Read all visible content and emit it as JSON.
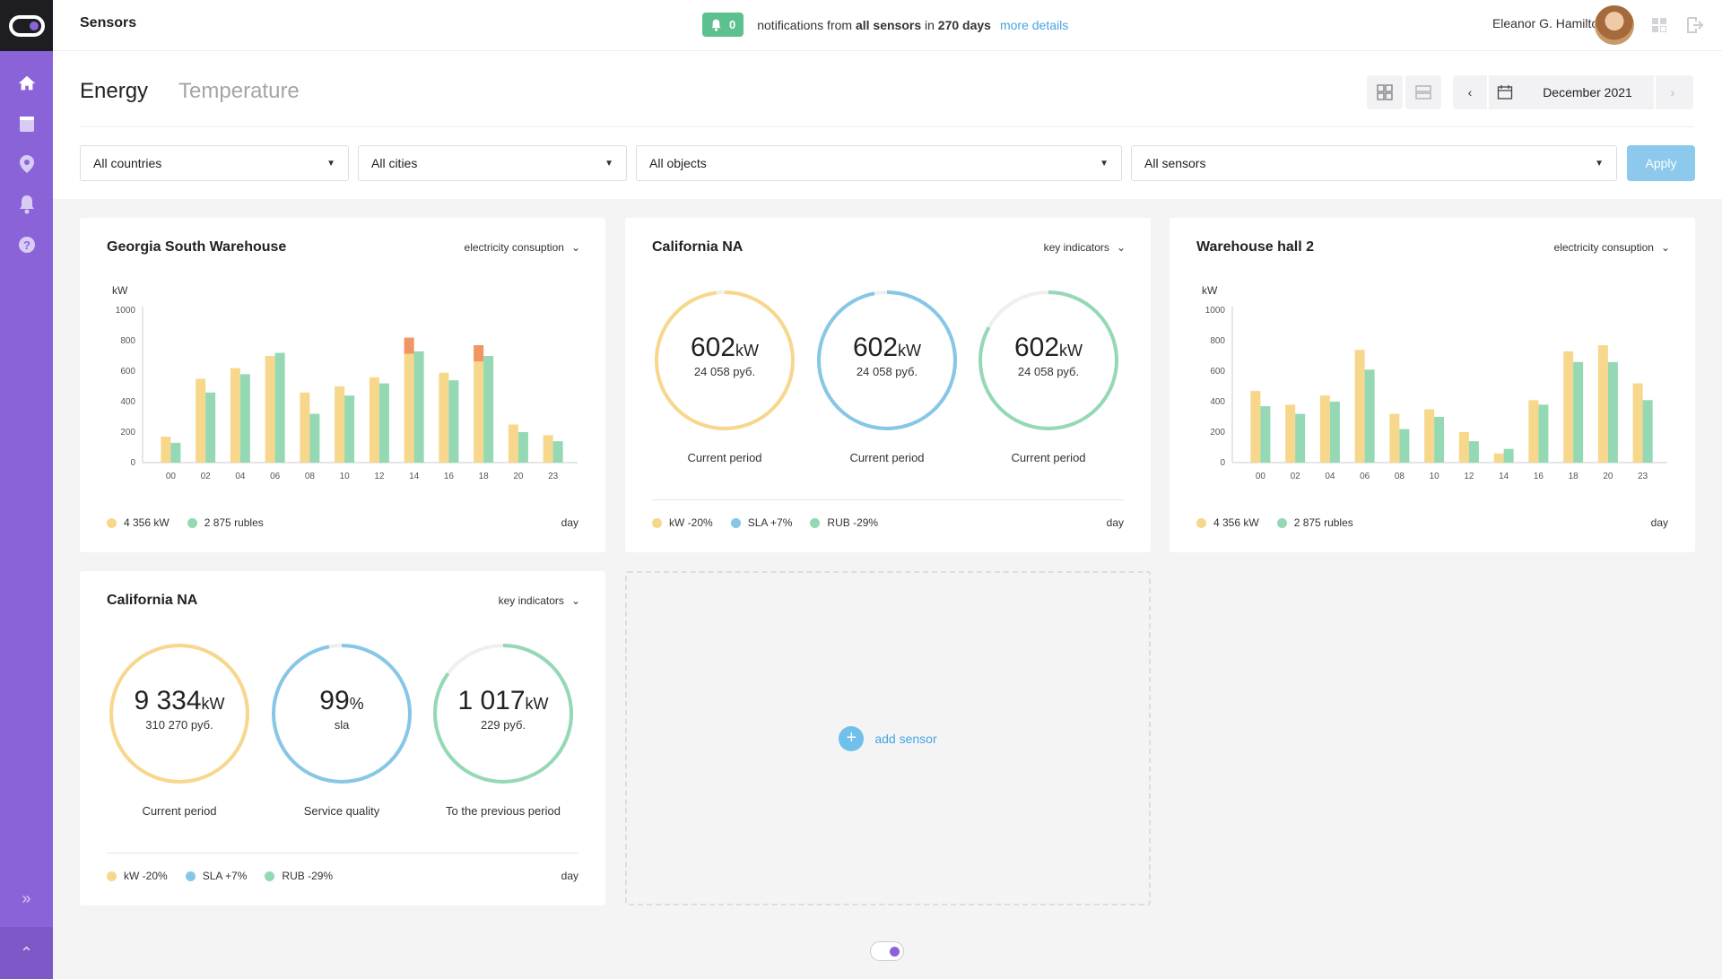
{
  "app": {
    "title": "Sensors"
  },
  "notifications": {
    "count": "0",
    "text_prefix": "notifications from ",
    "text_bold1": "all sensors",
    "text_mid": " in ",
    "text_bold2": "270 days",
    "link": "more details"
  },
  "user": {
    "name": "Eleanor G. Hamilton"
  },
  "tabs": [
    {
      "label": "Energy"
    },
    {
      "label": "Temperature"
    }
  ],
  "date": {
    "label": "December 2021"
  },
  "filters": {
    "country": "All countries",
    "city": "All cities",
    "object": "All objects",
    "sensor": "All sensors",
    "apply": "Apply"
  },
  "colors": {
    "yellow": "#f7d78c",
    "green": "#94d8b4",
    "blue": "#86c6e6",
    "orange": "#f08a5d",
    "purple": "#8b63d8"
  },
  "cards": {
    "georgia": {
      "title": "Georgia South Warehouse",
      "menu": "electricity consuption",
      "legend1": "4 356 kW",
      "legend2": "2 875 rubles",
      "period": "day"
    },
    "california1": {
      "title": "California NA",
      "menu": "key indicators",
      "legend1": "kW -20%",
      "legend2": "SLA +7%",
      "legend3": "RUB -29%",
      "period": "day",
      "rings": [
        {
          "value": "602",
          "unit": "kW",
          "sub": "24 058 руб.",
          "label": "Current period"
        },
        {
          "value": "602",
          "unit": "kW",
          "sub": "24 058 руб.",
          "label": "Current period"
        },
        {
          "value": "602",
          "unit": "kW",
          "sub": "24 058 руб.",
          "label": "Current period"
        }
      ]
    },
    "warehouse2": {
      "title": "Warehouse hall 2",
      "menu": "electricity consuption",
      "legend1": "4 356 kW",
      "legend2": "2 875 rubles",
      "period": "day"
    },
    "california2": {
      "title": "California NA",
      "menu": "key indicators",
      "legend1": "kW -20%",
      "legend2": "SLA +7%",
      "legend3": "RUB -29%",
      "period": "day",
      "rings": [
        {
          "value": "9 334",
          "unit": "kW",
          "sub": "310 270 руб.",
          "label": "Current period"
        },
        {
          "value": "99",
          "unit": "%",
          "sub": "sla",
          "label": "Service quality"
        },
        {
          "value": "1 017",
          "unit": "kW",
          "sub": "229 руб.",
          "label": "To the previous period"
        }
      ]
    },
    "add": {
      "label": "add sensor"
    }
  },
  "chart_data": [
    {
      "type": "bar",
      "title": "Georgia South Warehouse",
      "ylabel": "kW",
      "ylim": [
        0,
        1000
      ],
      "yticks": [
        0,
        200,
        400,
        600,
        800,
        1000
      ],
      "categories": [
        "00",
        "02",
        "04",
        "06",
        "08",
        "10",
        "12",
        "14",
        "16",
        "18",
        "20",
        "23"
      ],
      "series": [
        {
          "name": "4 356 kW",
          "color": "#f7d78c",
          "values": [
            170,
            550,
            620,
            700,
            460,
            500,
            560,
            820,
            590,
            770,
            250,
            180
          ]
        },
        {
          "name": "2 875 rubles",
          "color": "#94d8b4",
          "values": [
            130,
            460,
            580,
            720,
            320,
            440,
            520,
            730,
            540,
            700,
            200,
            140
          ]
        }
      ],
      "highlight_bars": [
        {
          "category": "14",
          "series": "4 356 kW"
        },
        {
          "category": "18",
          "series": "4 356 kW"
        }
      ]
    },
    {
      "type": "bar",
      "title": "Warehouse hall 2",
      "ylabel": "kW",
      "ylim": [
        0,
        1000
      ],
      "yticks": [
        0,
        200,
        400,
        600,
        800,
        1000
      ],
      "categories": [
        "00",
        "02",
        "04",
        "06",
        "08",
        "10",
        "12",
        "14",
        "16",
        "18",
        "20",
        "23"
      ],
      "series": [
        {
          "name": "4 356 kW",
          "color": "#f7d78c",
          "values": [
            470,
            380,
            440,
            740,
            320,
            350,
            200,
            60,
            410,
            730,
            770,
            520
          ]
        },
        {
          "name": "2 875 rubles",
          "color": "#94d8b4",
          "values": [
            370,
            320,
            400,
            610,
            220,
            300,
            140,
            90,
            380,
            660,
            660,
            410
          ]
        }
      ]
    },
    {
      "type": "pie",
      "title": "California NA",
      "series": [
        {
          "values": [
            98
          ]
        },
        {
          "values": [
            97
          ]
        },
        {
          "values": [
            83
          ]
        }
      ]
    },
    {
      "type": "pie",
      "title": "California NA",
      "series": [
        {
          "values": [
            100
          ]
        },
        {
          "values": [
            97
          ]
        },
        {
          "values": [
            85
          ]
        }
      ]
    }
  ]
}
